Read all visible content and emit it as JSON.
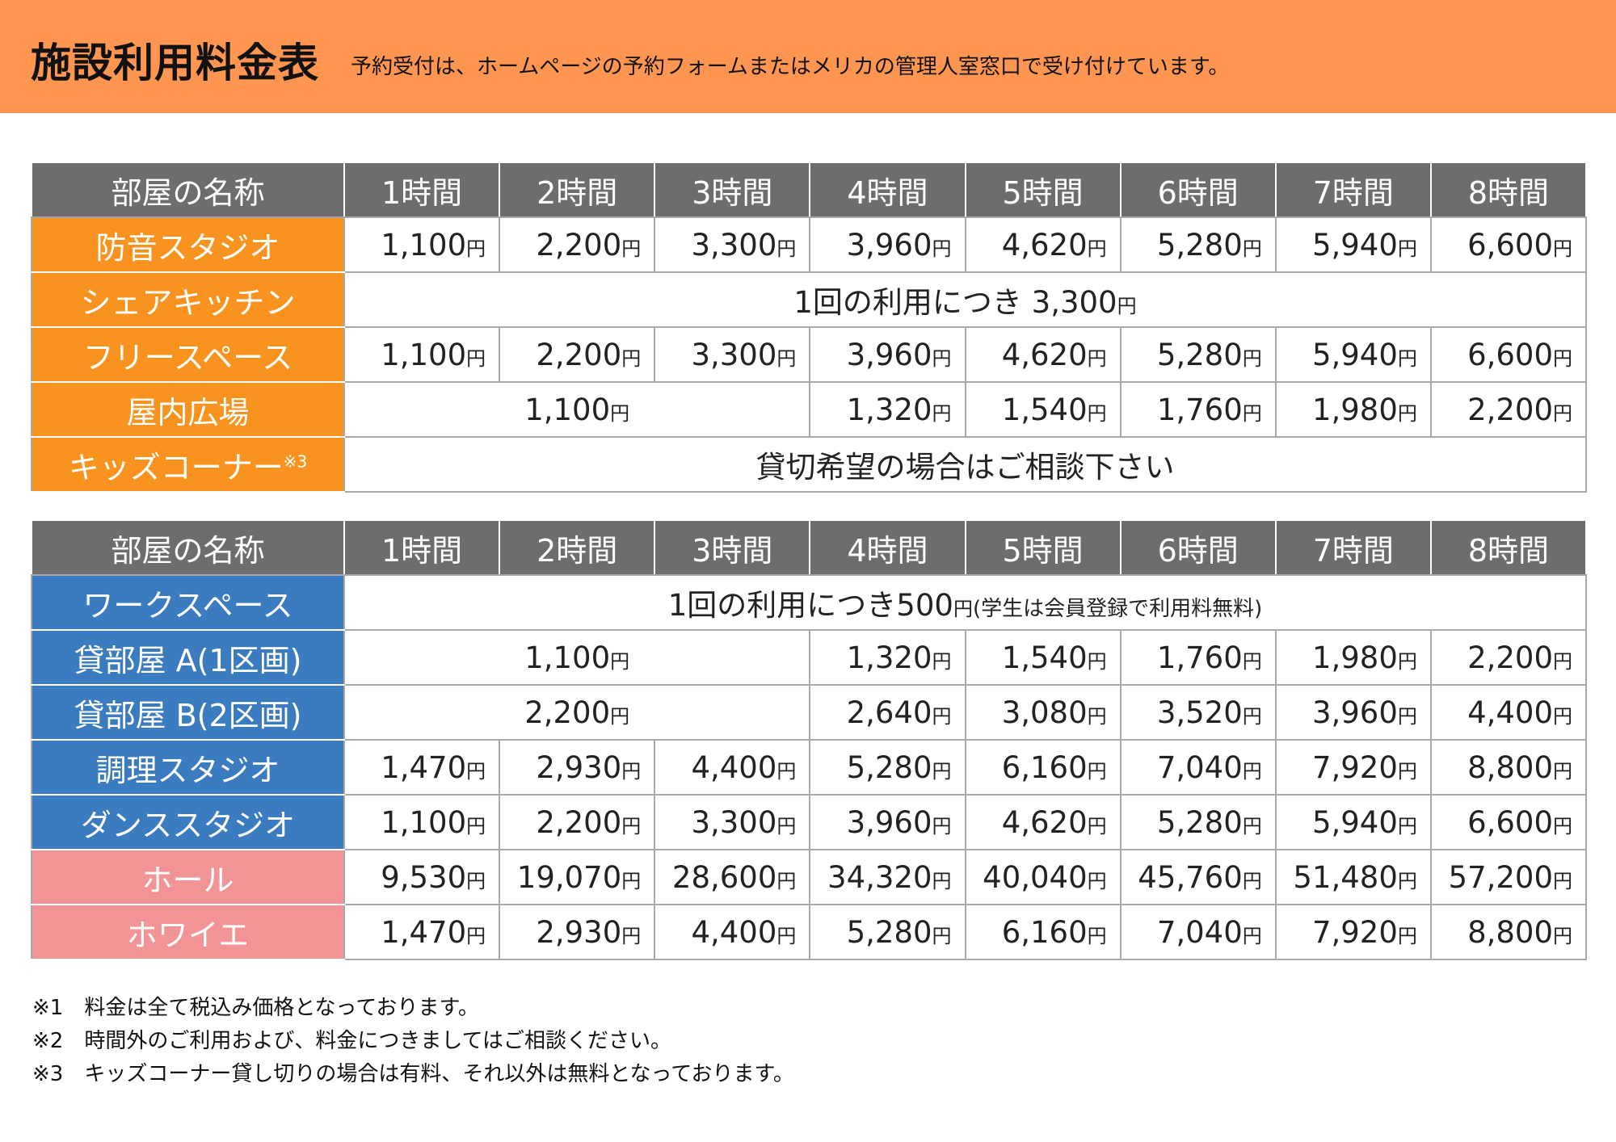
{
  "header": {
    "title": "施設利用料金表",
    "subtitle": "予約受付は、ホームページの予約フォームまたはメリカの管理人室窓口で受け付けています。"
  },
  "tables": [
    {
      "columns": [
        "部屋の名称",
        "1時間",
        "2時間",
        "3時間",
        "4時間",
        "5時間",
        "6時間",
        "7時間",
        "8時間"
      ],
      "rows": [
        {
          "name": "防音スタジオ",
          "color": "#f7931e",
          "cells": [
            "1,100円",
            "2,200円",
            "3,300円",
            "3,960円",
            "4,620円",
            "5,280円",
            "5,940円",
            "6,600円"
          ]
        },
        {
          "name": "シェアキッチン",
          "color": "#f7931e",
          "cells": [
            "1回の利用につき 3,300円",
            null,
            null,
            null,
            null,
            null,
            null,
            null
          ]
        },
        {
          "name": "フリースペース",
          "color": "#f7931e",
          "cells": [
            "1,100円",
            "2,200円",
            "3,300円",
            "3,960円",
            "4,620円",
            "5,280円",
            "5,940円",
            "6,600円"
          ]
        },
        {
          "name": "屋内広場",
          "color": "#f7931e",
          "cells": [
            "1,100円",
            null,
            null,
            "1,320円",
            "1,540円",
            "1,760円",
            "1,980円",
            "2,200円"
          ]
        },
        {
          "name": "キッズコーナー",
          "note": "※3",
          "color": "#f7931e",
          "cells": [
            "貸切希望の場合はご相談下さい",
            null,
            null,
            null,
            null,
            null,
            null,
            null
          ]
        }
      ]
    },
    {
      "columns": [
        "部屋の名称",
        "1時間",
        "2時間",
        "3時間",
        "4時間",
        "5時間",
        "6時間",
        "7時間",
        "8時間"
      ],
      "rows": [
        {
          "name": "ワークスペース",
          "color": "#3b7bbf",
          "cells": [
            "1回の利用につき500円(学生は会員登録で利用料無料)",
            null,
            null,
            null,
            null,
            null,
            null,
            null
          ]
        },
        {
          "name": "貸部屋 A(1区画)",
          "color": "#3b7bbf",
          "cells": [
            "1,100円",
            null,
            null,
            "1,320円",
            "1,540円",
            "1,760円",
            "1,980円",
            "2,200円"
          ]
        },
        {
          "name": "貸部屋 B(2区画)",
          "color": "#3b7bbf",
          "cells": [
            "2,200円",
            null,
            null,
            "2,640円",
            "3,080円",
            "3,520円",
            "3,960円",
            "4,400円"
          ]
        },
        {
          "name": "調理スタジオ",
          "color": "#3b7bbf",
          "cells": [
            "1,470円",
            "2,930円",
            "4,400円",
            "5,280円",
            "6,160円",
            "7,040円",
            "7,920円",
            "8,800円"
          ]
        },
        {
          "name": "ダンススタジオ",
          "color": "#3b7bbf",
          "cells": [
            "1,100円",
            "2,200円",
            "3,300円",
            "3,960円",
            "4,620円",
            "5,280円",
            "5,940円",
            "6,600円"
          ]
        },
        {
          "name": "ホール",
          "color": "#f29496",
          "cells": [
            "9,530円",
            "19,070円",
            "28,600円",
            "34,320円",
            "40,040円",
            "45,760円",
            "51,480円",
            "57,200円"
          ]
        },
        {
          "name": "ホワイエ",
          "color": "#f29496",
          "cells": [
            "1,470円",
            "2,930円",
            "4,400円",
            "5,280円",
            "6,160円",
            "7,040円",
            "7,920円",
            "8,800円"
          ]
        }
      ]
    }
  ],
  "notes": [
    "※1　料金は全て税込み価格となっております。",
    "※2　時間外のご利用および、料金につきましてはご相談ください。",
    "※3　キッズコーナー貸し切りの場合は有料、それ以外は無料となっております。"
  ]
}
